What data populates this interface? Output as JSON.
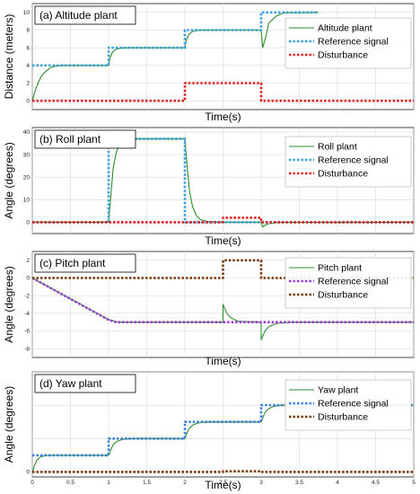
{
  "figure": {
    "xlabel": "Time(s)"
  },
  "chart_data": [
    {
      "type": "line",
      "title": "(a) Altitude plant",
      "ylabel": "Distance (meters)",
      "xlabel": "Time(s)",
      "xlim": [
        0,
        5
      ],
      "ylim": [
        -1,
        11
      ],
      "yticks": [
        0,
        2,
        4,
        6,
        8,
        10
      ],
      "xticks": [],
      "legend_position": "top-right",
      "series": [
        {
          "name": "Altitude plant",
          "color": "#2e8b2e",
          "style": "solid",
          "x": [
            0,
            0.04,
            0.08,
            0.12,
            0.16,
            0.2,
            0.25,
            0.3,
            0.4,
            1.0,
            1.02,
            1.05,
            1.1,
            1.2,
            2.0,
            2.02,
            2.05,
            2.1,
            2.2,
            3.0,
            3.02,
            3.06,
            3.1,
            3.2,
            3.3,
            3.75
          ],
          "y": [
            0,
            1.2,
            2.1,
            2.8,
            3.2,
            3.5,
            3.8,
            3.9,
            4.0,
            4.0,
            4.9,
            5.5,
            5.85,
            6.0,
            6.0,
            6.9,
            7.5,
            7.85,
            8.0,
            8.0,
            6.0,
            7.2,
            8.8,
            9.6,
            9.95,
            10.0
          ]
        },
        {
          "name": "Reference signal",
          "color": "#3aa0e0",
          "style": "dotted",
          "x": [
            0,
            0,
            1,
            1,
            2,
            2,
            3,
            3,
            3.75
          ],
          "y": [
            4,
            4,
            4,
            6,
            6,
            8,
            8,
            10,
            10
          ]
        },
        {
          "name": "Disturbance",
          "color": "#e02020",
          "style": "dotted",
          "x": [
            0,
            2,
            2,
            3,
            3,
            5
          ],
          "y": [
            0,
            0,
            2,
            2,
            0,
            0
          ]
        }
      ]
    },
    {
      "type": "line",
      "title": "(b) Roll plant",
      "ylabel": "Angle (degrees)",
      "xlabel": "Time(s)",
      "xlim": [
        0,
        5
      ],
      "ylim": [
        -5,
        42
      ],
      "yticks": [
        0,
        10,
        20,
        30,
        40
      ],
      "xticks": [],
      "legend_position": "top-right",
      "series": [
        {
          "name": "Roll plant",
          "color": "#2e8b2e",
          "style": "solid",
          "x": [
            0,
            1.0,
            1.03,
            1.06,
            1.1,
            1.15,
            1.2,
            1.3,
            2.0,
            2.03,
            2.06,
            2.1,
            2.15,
            2.2,
            2.3,
            2.5,
            3.0,
            3.02,
            3.08,
            3.2,
            5
          ],
          "y": [
            0,
            0,
            12,
            24,
            31,
            35,
            36.5,
            37,
            37,
            25,
            14,
            7,
            3,
            1.2,
            0.3,
            0,
            0,
            -2,
            -0.8,
            -0.1,
            0
          ]
        },
        {
          "name": "Reference signal",
          "color": "#3aa0e0",
          "style": "dotted",
          "x": [
            0,
            1,
            1,
            2,
            2,
            5
          ],
          "y": [
            0,
            0,
            37,
            37,
            0,
            0
          ]
        },
        {
          "name": "Disturbance",
          "color": "#e02020",
          "style": "dotted",
          "x": [
            0,
            2.5,
            2.5,
            3,
            3,
            5
          ],
          "y": [
            0,
            0,
            2,
            2,
            0,
            0
          ]
        }
      ]
    },
    {
      "type": "line",
      "title": "(c) Pitch plant",
      "ylabel": "Angle (degrees)",
      "xlabel": "Time(s)",
      "xlim": [
        0,
        5
      ],
      "ylim": [
        -9,
        3
      ],
      "yticks": [
        -8,
        -6,
        -4,
        -2,
        0,
        2
      ],
      "xticks": [],
      "legend_position": "top-right",
      "series": [
        {
          "name": "Pitch plant",
          "color": "#2e8b2e",
          "style": "solid",
          "x": [
            0,
            1.0,
            1.1,
            1.2,
            2.5,
            2.5,
            2.55,
            2.6,
            2.7,
            3.0,
            3.0,
            3.05,
            3.1,
            3.2,
            3.4,
            5
          ],
          "y": [
            0,
            -4.7,
            -4.95,
            -5.0,
            -5.0,
            -3.0,
            -4.0,
            -4.5,
            -4.9,
            -5.0,
            -7.0,
            -6.0,
            -5.5,
            -5.15,
            -5.0,
            -5.0
          ]
        },
        {
          "name": "Reference signal",
          "color": "#9c3bd8",
          "style": "dotted",
          "x": [
            0,
            1.0,
            1.1,
            5
          ],
          "y": [
            0,
            -4.75,
            -5.0,
            -5.0
          ]
        },
        {
          "name": "Disturbance",
          "color": "#7a3a0c",
          "style": "dotted",
          "x": [
            0,
            2.5,
            2.5,
            3,
            3,
            5
          ],
          "y": [
            0,
            0,
            2,
            2,
            0,
            0
          ]
        }
      ]
    },
    {
      "type": "line",
      "title": "(d) Yaw plant",
      "ylabel": "Angle (degrees)",
      "xlabel": "Time(s)",
      "xlim": [
        0,
        5
      ],
      "ylim": [
        -15,
        300
      ],
      "yticks": [
        0,
        100,
        200,
        300
      ],
      "yticklabels": [
        "0",
        "",
        "",
        ""
      ],
      "xticks": [
        0,
        0.5,
        1,
        1.5,
        2,
        2.5,
        3,
        3.5,
        4,
        4.5,
        5
      ],
      "legend_position": "top-right",
      "series": [
        {
          "name": "Yaw plant",
          "color": "#2e8b2e",
          "style": "solid",
          "x": [
            0,
            0.03,
            0.06,
            0.1,
            0.15,
            0.2,
            0.3,
            1.0,
            1.03,
            1.06,
            1.1,
            1.15,
            1.2,
            1.3,
            2.0,
            2.03,
            2.06,
            2.1,
            2.15,
            2.2,
            2.3,
            3.0,
            3.03,
            3.06,
            3.1,
            3.15,
            3.2,
            3.3,
            5
          ],
          "y": [
            0,
            20,
            35,
            44,
            48,
            49.5,
            50,
            50,
            68,
            81,
            90,
            95,
            98,
            100,
            100,
            118,
            131,
            140,
            145,
            148,
            150,
            150,
            168,
            181,
            190,
            195,
            198,
            200,
            200
          ]
        },
        {
          "name": "Reference signal",
          "color": "#3a80e0",
          "style": "dotted",
          "x": [
            0,
            1,
            1,
            2,
            2,
            3,
            3,
            5
          ],
          "y": [
            50,
            50,
            100,
            100,
            150,
            150,
            200,
            200
          ]
        },
        {
          "name": "Disturbance",
          "color": "#7a3a0c",
          "style": "dotted",
          "x": [
            0,
            2.5,
            2.5,
            3,
            3,
            5
          ],
          "y": [
            0,
            0,
            2,
            2,
            0,
            0
          ]
        }
      ]
    }
  ]
}
